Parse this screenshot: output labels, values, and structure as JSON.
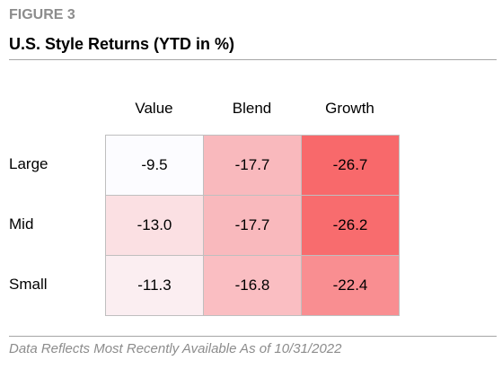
{
  "header": {
    "figure": "FIGURE 3",
    "title": "U.S. Style Returns (YTD in %)"
  },
  "table": {
    "columns": [
      "Value",
      "Blend",
      "Growth"
    ],
    "rows": [
      {
        "label": "Large",
        "cells": [
          "-9.5",
          "-17.7",
          "-26.7"
        ],
        "colors": [
          "#fcfcff",
          "#f9b9bd",
          "#f8696b"
        ]
      },
      {
        "label": "Mid",
        "cells": [
          "-13.0",
          "-17.7",
          "-26.2"
        ],
        "colors": [
          "#fbe0e3",
          "#f9b9bd",
          "#f86c6e"
        ]
      },
      {
        "label": "Small",
        "cells": [
          "-11.3",
          "-16.8",
          "-22.4"
        ],
        "colors": [
          "#fbeef1",
          "#fabec2",
          "#f98e91"
        ]
      }
    ]
  },
  "footnote": "Data Reflects Most Recently Available As of 10/31/2022"
}
